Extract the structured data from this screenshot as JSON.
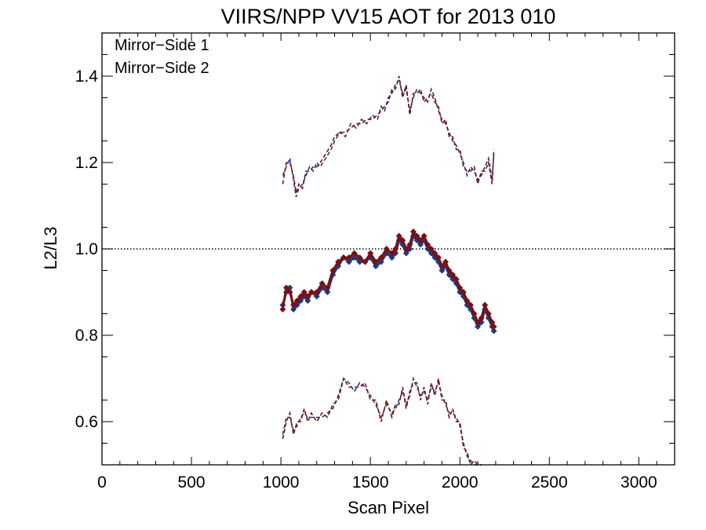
{
  "chart_data": {
    "type": "line",
    "title": "VIIRS/NPP VV15 AOT for 2013 010",
    "xlabel": "Scan Pixel",
    "ylabel": "L2/L3",
    "xlim": [
      0,
      3200
    ],
    "ylim": [
      0.5,
      1.5
    ],
    "x_ticks": [
      0,
      500,
      1000,
      1500,
      2000,
      2500,
      3000
    ],
    "x_tick_labels": [
      "0",
      "500",
      "1000",
      "1500",
      "2000",
      "2500",
      "3000"
    ],
    "y_ticks": [
      0.6,
      0.8,
      1.0,
      1.2,
      1.4
    ],
    "y_tick_labels": [
      "0.6",
      "0.8",
      "1.0",
      "1.2",
      "1.4"
    ],
    "reference_line": {
      "y": 1.0,
      "style": "dotted"
    },
    "legend_position": "top-left",
    "grid": false,
    "series": [
      {
        "name": "Mirror−Side 1",
        "color": "#1f3b7a",
        "mean": {
          "x": [
            1010,
            1030,
            1050,
            1070,
            1090,
            1110,
            1130,
            1150,
            1170,
            1200,
            1230,
            1260,
            1290,
            1320,
            1350,
            1380,
            1410,
            1440,
            1470,
            1500,
            1530,
            1560,
            1590,
            1620,
            1640,
            1660,
            1680,
            1700,
            1720,
            1740,
            1760,
            1780,
            1800,
            1820,
            1840,
            1860,
            1880,
            1900,
            1920,
            1940,
            1960,
            1980,
            2000,
            2020,
            2040,
            2060,
            2080,
            2100,
            2120,
            2140,
            2160,
            2180,
            2190
          ],
          "y": [
            0.87,
            0.9,
            0.91,
            0.86,
            0.87,
            0.88,
            0.89,
            0.88,
            0.9,
            0.89,
            0.91,
            0.9,
            0.94,
            0.96,
            0.98,
            0.97,
            0.98,
            0.97,
            0.97,
            0.98,
            0.96,
            0.97,
            0.99,
            0.98,
            0.99,
            1.02,
            1.01,
            0.99,
            1.0,
            1.03,
            1.02,
            1.01,
            1.02,
            1.0,
            0.99,
            0.98,
            0.97,
            0.95,
            0.96,
            0.94,
            0.93,
            0.92,
            0.9,
            0.89,
            0.87,
            0.86,
            0.84,
            0.82,
            0.83,
            0.86,
            0.84,
            0.82,
            0.81
          ]
        },
        "upper": {
          "x": [
            1010,
            1030,
            1050,
            1070,
            1085,
            1100,
            1120,
            1140,
            1160,
            1180,
            1200,
            1220,
            1250,
            1280,
            1300,
            1330,
            1360,
            1390,
            1420,
            1450,
            1480,
            1510,
            1540,
            1560,
            1580,
            1600,
            1620,
            1640,
            1660,
            1680,
            1700,
            1720,
            1740,
            1760,
            1780,
            1800,
            1820,
            1840,
            1860,
            1880,
            1900,
            1920,
            1940,
            1960,
            1980,
            2000,
            2020,
            2040,
            2060,
            2080,
            2100,
            2120,
            2140,
            2160,
            2180,
            2190
          ],
          "y": [
            1.17,
            1.19,
            1.21,
            1.16,
            1.12,
            1.14,
            1.15,
            1.17,
            1.19,
            1.18,
            1.2,
            1.19,
            1.21,
            1.23,
            1.25,
            1.27,
            1.26,
            1.29,
            1.28,
            1.3,
            1.29,
            1.31,
            1.3,
            1.33,
            1.32,
            1.35,
            1.36,
            1.38,
            1.39,
            1.36,
            1.37,
            1.32,
            1.35,
            1.37,
            1.36,
            1.35,
            1.34,
            1.37,
            1.35,
            1.32,
            1.3,
            1.29,
            1.27,
            1.25,
            1.24,
            1.22,
            1.2,
            1.17,
            1.19,
            1.18,
            1.16,
            1.17,
            1.19,
            1.21,
            1.16,
            1.22
          ]
        },
        "lower": {
          "x": [
            1010,
            1030,
            1050,
            1070,
            1090,
            1110,
            1130,
            1150,
            1170,
            1200,
            1230,
            1260,
            1290,
            1320,
            1350,
            1380,
            1410,
            1440,
            1470,
            1500,
            1530,
            1560,
            1590,
            1620,
            1640,
            1660,
            1680,
            1700,
            1720,
            1740,
            1760,
            1780,
            1800,
            1820,
            1840,
            1860,
            1880,
            1900,
            1920,
            1940,
            1960,
            1980,
            2000,
            2020,
            2040,
            2060,
            2080,
            2100,
            2120
          ],
          "y": [
            0.57,
            0.61,
            0.61,
            0.58,
            0.59,
            0.61,
            0.62,
            0.61,
            0.61,
            0.61,
            0.61,
            0.62,
            0.63,
            0.66,
            0.7,
            0.69,
            0.67,
            0.69,
            0.68,
            0.66,
            0.64,
            0.61,
            0.64,
            0.62,
            0.63,
            0.65,
            0.67,
            0.64,
            0.66,
            0.7,
            0.68,
            0.66,
            0.67,
            0.65,
            0.68,
            0.67,
            0.69,
            0.66,
            0.64,
            0.62,
            0.62,
            0.61,
            0.59,
            0.55,
            0.52,
            0.51,
            0.5,
            0.5,
            0.5
          ]
        }
      },
      {
        "name": "Mirror−Side 2",
        "color": "#7a0f14",
        "mean": {
          "x": [
            1010,
            1030,
            1050,
            1070,
            1090,
            1110,
            1130,
            1150,
            1170,
            1200,
            1230,
            1260,
            1290,
            1320,
            1350,
            1380,
            1410,
            1440,
            1470,
            1500,
            1530,
            1560,
            1590,
            1620,
            1640,
            1660,
            1680,
            1700,
            1720,
            1740,
            1760,
            1780,
            1800,
            1820,
            1840,
            1860,
            1880,
            1900,
            1920,
            1940,
            1960,
            1980,
            2000,
            2020,
            2040,
            2060,
            2080,
            2100,
            2120,
            2140,
            2160,
            2180,
            2190
          ],
          "y": [
            0.86,
            0.91,
            0.9,
            0.87,
            0.88,
            0.89,
            0.9,
            0.89,
            0.9,
            0.9,
            0.92,
            0.91,
            0.95,
            0.97,
            0.98,
            0.98,
            0.99,
            0.98,
            0.97,
            0.99,
            0.97,
            0.98,
            1.0,
            0.99,
            1.0,
            1.03,
            1.02,
            1.0,
            1.01,
            1.04,
            1.03,
            1.02,
            1.03,
            1.01,
            1.0,
            0.99,
            0.98,
            0.96,
            0.97,
            0.95,
            0.94,
            0.93,
            0.91,
            0.9,
            0.88,
            0.87,
            0.85,
            0.83,
            0.84,
            0.87,
            0.85,
            0.83,
            0.82
          ]
        },
        "upper": {
          "x": [
            1010,
            1030,
            1050,
            1070,
            1085,
            1100,
            1120,
            1140,
            1160,
            1180,
            1200,
            1220,
            1250,
            1280,
            1300,
            1330,
            1360,
            1390,
            1420,
            1450,
            1480,
            1510,
            1540,
            1560,
            1580,
            1600,
            1620,
            1640,
            1660,
            1680,
            1700,
            1720,
            1740,
            1760,
            1780,
            1800,
            1820,
            1840,
            1860,
            1880,
            1900,
            1920,
            1940,
            1960,
            1980,
            2000,
            2020,
            2040,
            2060,
            2080,
            2100,
            2120,
            2140,
            2160,
            2180,
            2190
          ],
          "y": [
            1.15,
            1.2,
            1.2,
            1.17,
            1.13,
            1.15,
            1.14,
            1.18,
            1.18,
            1.19,
            1.19,
            1.2,
            1.22,
            1.24,
            1.26,
            1.27,
            1.27,
            1.28,
            1.29,
            1.29,
            1.3,
            1.3,
            1.31,
            1.32,
            1.33,
            1.34,
            1.37,
            1.37,
            1.4,
            1.35,
            1.38,
            1.31,
            1.36,
            1.36,
            1.37,
            1.34,
            1.35,
            1.36,
            1.34,
            1.33,
            1.29,
            1.3,
            1.26,
            1.26,
            1.23,
            1.23,
            1.19,
            1.18,
            1.18,
            1.19,
            1.15,
            1.18,
            1.18,
            1.2,
            1.15,
            1.23
          ]
        },
        "lower": {
          "x": [
            1010,
            1030,
            1050,
            1070,
            1090,
            1110,
            1130,
            1150,
            1170,
            1200,
            1230,
            1260,
            1290,
            1320,
            1350,
            1380,
            1410,
            1440,
            1470,
            1500,
            1530,
            1560,
            1590,
            1620,
            1640,
            1660,
            1680,
            1700,
            1720,
            1740,
            1760,
            1780,
            1800,
            1820,
            1840,
            1860,
            1880,
            1900,
            1920,
            1940,
            1960,
            1980,
            2000,
            2020,
            2040,
            2060,
            2080,
            2100,
            2120
          ],
          "y": [
            0.56,
            0.6,
            0.62,
            0.57,
            0.6,
            0.6,
            0.63,
            0.6,
            0.62,
            0.6,
            0.62,
            0.61,
            0.64,
            0.65,
            0.7,
            0.68,
            0.68,
            0.68,
            0.69,
            0.65,
            0.65,
            0.6,
            0.65,
            0.61,
            0.64,
            0.64,
            0.68,
            0.63,
            0.67,
            0.69,
            0.69,
            0.65,
            0.68,
            0.64,
            0.69,
            0.66,
            0.7,
            0.65,
            0.65,
            0.61,
            0.63,
            0.6,
            0.6,
            0.54,
            0.53,
            0.5,
            0.51,
            0.5,
            0.5
          ]
        }
      }
    ]
  }
}
